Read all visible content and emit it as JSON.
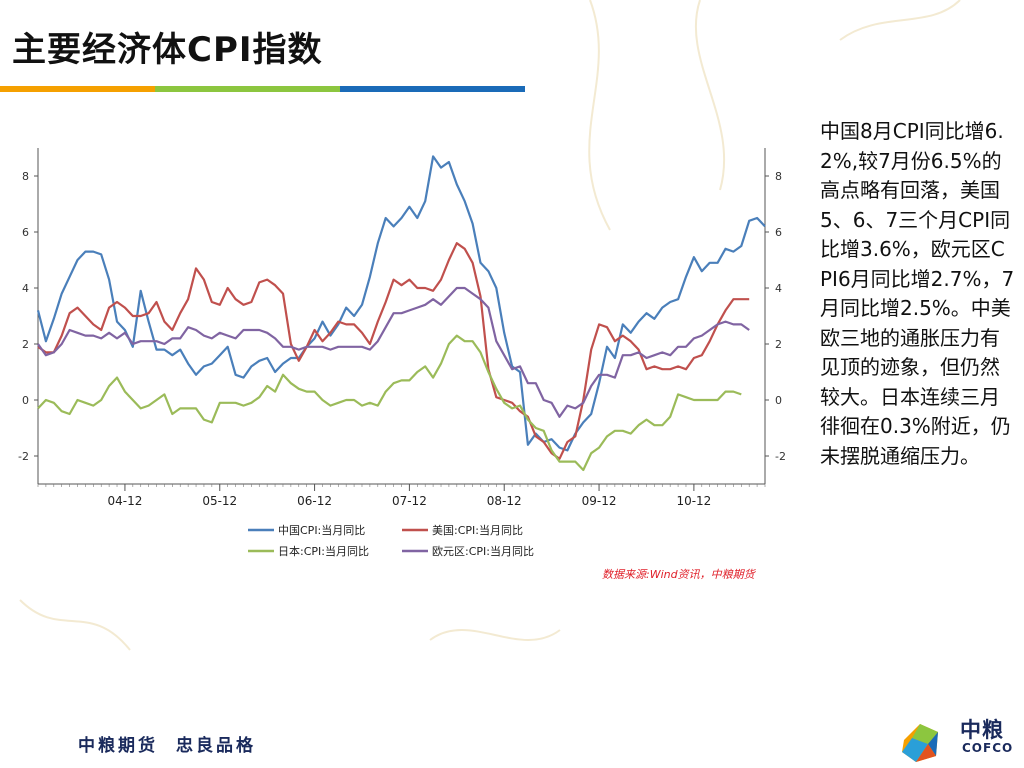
{
  "slide": {
    "title": "主要经济体CPI指数",
    "title_bar_colors": [
      "#f5a000",
      "#8cc63f",
      "#1a6bb8"
    ],
    "source_note": "数据来源:Wind资讯，中粮期货",
    "commentary": "中国8月CPI同比增6.2%,较7月份6.5%的高点略有回落，美国5、6、7三个月CPI同比增3.6%，欧元区CPI6月同比增2.7%，7月同比增2.5%。中美欧三地的通胀压力有见顶的迹象，但仍然较大。日本连续三月徘徊在0.3%附近，仍未摆脱通缩压力。",
    "footer_slogan": [
      "中粮期货",
      "忠良品格"
    ],
    "logo_text_cn": "中粮",
    "logo_text_en": "COFCO"
  },
  "chart_data": {
    "type": "line",
    "title": "",
    "xlabel": "",
    "ylabel": "",
    "ylim": [
      -3,
      9
    ],
    "yticks": [
      -2,
      0,
      2,
      4,
      6,
      8
    ],
    "x_tick_labels": [
      "04-12",
      "05-12",
      "06-12",
      "07-12",
      "08-12",
      "09-12",
      "10-12"
    ],
    "x_tick_index": [
      11,
      23,
      35,
      47,
      59,
      71,
      83
    ],
    "grid": false,
    "legend_position": "bottom",
    "series": [
      {
        "name": "中国CPI:当月同比",
        "color": "#4a7fba",
        "values": [
          3.2,
          2.1,
          2.9,
          3.8,
          4.4,
          5.0,
          5.3,
          5.3,
          5.2,
          4.3,
          2.8,
          2.5,
          1.9,
          3.9,
          2.8,
          1.8,
          1.8,
          1.6,
          1.8,
          1.3,
          0.9,
          1.2,
          1.3,
          1.6,
          1.9,
          0.9,
          0.8,
          1.2,
          1.4,
          1.5,
          1.0,
          1.3,
          1.5,
          1.5,
          1.9,
          2.2,
          2.8,
          2.3,
          2.7,
          3.3,
          3.0,
          3.4,
          4.4,
          5.6,
          6.5,
          6.2,
          6.5,
          6.9,
          6.5,
          7.1,
          8.7,
          8.3,
          8.5,
          7.7,
          7.1,
          6.3,
          4.9,
          4.6,
          4.0,
          2.4,
          1.2,
          1.0,
          -1.6,
          -1.2,
          -1.5,
          -1.4,
          -1.7,
          -1.8,
          -1.2,
          -0.8,
          -0.5,
          0.6,
          1.9,
          1.5,
          2.7,
          2.4,
          2.8,
          3.1,
          2.9,
          3.3,
          3.5,
          3.6,
          4.4,
          5.1,
          4.6,
          4.9,
          4.9,
          5.4,
          5.3,
          5.5,
          6.4,
          6.5,
          6.2
        ]
      },
      {
        "name": "美国:CPI:当月同比",
        "color": "#c0504d",
        "values": [
          1.9,
          1.7,
          1.7,
          2.3,
          3.1,
          3.3,
          3.0,
          2.7,
          2.5,
          3.3,
          3.5,
          3.3,
          3.0,
          3.0,
          3.1,
          3.5,
          2.8,
          2.5,
          3.1,
          3.6,
          4.7,
          4.3,
          3.5,
          3.4,
          4.0,
          3.6,
          3.4,
          3.5,
          4.2,
          4.3,
          4.1,
          3.8,
          2.0,
          1.4,
          1.9,
          2.5,
          2.1,
          2.4,
          2.8,
          2.7,
          2.7,
          2.4,
          2.0,
          2.8,
          3.5,
          4.3,
          4.1,
          4.3,
          4.0,
          4.0,
          3.9,
          4.3,
          5.0,
          5.6,
          5.4,
          4.9,
          3.7,
          1.1,
          0.1,
          0.0,
          -0.1,
          -0.4,
          -0.6,
          -1.3,
          -1.5,
          -1.9,
          -2.1,
          -1.5,
          -1.3,
          0.0,
          1.8,
          2.7,
          2.6,
          2.1,
          2.3,
          2.1,
          1.8,
          1.1,
          1.2,
          1.1,
          1.1,
          1.2,
          1.1,
          1.5,
          1.6,
          2.1,
          2.7,
          3.2,
          3.6,
          3.6,
          3.6
        ]
      },
      {
        "name": "日本:CPI:当月同比",
        "color": "#9bbb59",
        "values": [
          -0.3,
          0.0,
          -0.1,
          -0.4,
          -0.5,
          0.0,
          -0.1,
          -0.2,
          0.0,
          0.5,
          0.8,
          0.3,
          0.0,
          -0.3,
          -0.2,
          0.0,
          0.2,
          -0.5,
          -0.3,
          -0.3,
          -0.3,
          -0.7,
          -0.8,
          -0.1,
          -0.1,
          -0.1,
          -0.2,
          -0.1,
          0.1,
          0.5,
          0.3,
          0.9,
          0.6,
          0.4,
          0.3,
          0.3,
          0.0,
          -0.2,
          -0.1,
          0.0,
          0.0,
          -0.2,
          -0.1,
          -0.2,
          0.3,
          0.6,
          0.7,
          0.7,
          1.0,
          1.2,
          0.8,
          1.3,
          2.0,
          2.3,
          2.1,
          2.1,
          1.7,
          1.0,
          0.4,
          -0.1,
          -0.3,
          -0.2,
          -0.7,
          -1.0,
          -1.1,
          -1.8,
          -2.2,
          -2.2,
          -2.2,
          -2.5,
          -1.9,
          -1.7,
          -1.3,
          -1.1,
          -1.1,
          -1.2,
          -0.9,
          -0.7,
          -0.9,
          -0.9,
          -0.6,
          0.2,
          0.1,
          0.0,
          0.0,
          0.0,
          0.0,
          0.3,
          0.3,
          0.2
        ]
      },
      {
        "name": "欧元区:CPI:当月同比",
        "color": "#8064a2",
        "values": [
          2.0,
          1.6,
          1.7,
          2.0,
          2.5,
          2.4,
          2.3,
          2.3,
          2.2,
          2.4,
          2.2,
          2.4,
          2.0,
          2.1,
          2.1,
          2.1,
          2.0,
          2.2,
          2.2,
          2.6,
          2.5,
          2.3,
          2.2,
          2.4,
          2.3,
          2.2,
          2.5,
          2.5,
          2.5,
          2.4,
          2.2,
          1.9,
          1.9,
          1.8,
          1.9,
          1.9,
          1.9,
          1.8,
          1.9,
          1.9,
          1.9,
          1.9,
          1.8,
          2.1,
          2.6,
          3.1,
          3.1,
          3.2,
          3.3,
          3.4,
          3.6,
          3.4,
          3.7,
          4.0,
          4.0,
          3.8,
          3.6,
          3.3,
          2.1,
          1.6,
          1.1,
          1.2,
          0.6,
          0.6,
          0.0,
          -0.1,
          -0.6,
          -0.2,
          -0.3,
          -0.1,
          0.5,
          0.9,
          0.9,
          0.8,
          1.6,
          1.6,
          1.7,
          1.5,
          1.6,
          1.7,
          1.6,
          1.9,
          1.9,
          2.2,
          2.3,
          2.5,
          2.7,
          2.8,
          2.7,
          2.7,
          2.5
        ]
      }
    ]
  }
}
